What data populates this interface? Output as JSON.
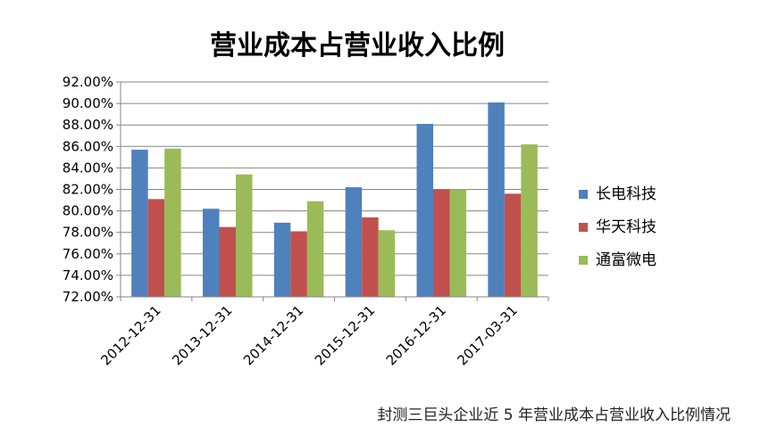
{
  "chart_data": {
    "type": "bar",
    "title": "营业成本占营业收入比例",
    "caption": "封测三巨头企业近 5 年营业成本占营业收入比例情况",
    "categories": [
      "2012-12-31",
      "2013-12-31",
      "2014-12-31",
      "2015-12-31",
      "2016-12-31",
      "2017-03-31"
    ],
    "series": [
      {
        "name": "长电科技",
        "color": "#4F81BD",
        "values": [
          85.7,
          80.2,
          78.9,
          82.2,
          88.1,
          90.1
        ]
      },
      {
        "name": "华天科技",
        "color": "#C0504D",
        "values": [
          81.1,
          78.5,
          78.1,
          79.4,
          82.0,
          81.6
        ]
      },
      {
        "name": "通富微电",
        "color": "#9BBB59",
        "values": [
          85.8,
          83.4,
          80.9,
          78.2,
          82.0,
          86.2
        ]
      }
    ],
    "ylim": [
      72,
      92
    ],
    "yticks": [
      "72.00%",
      "74.00%",
      "76.00%",
      "78.00%",
      "80.00%",
      "82.00%",
      "84.00%",
      "86.00%",
      "88.00%",
      "90.00%",
      "92.00%"
    ],
    "grid": true,
    "legend": "right",
    "axis_color": "#868686",
    "grid_color": "#868686"
  }
}
